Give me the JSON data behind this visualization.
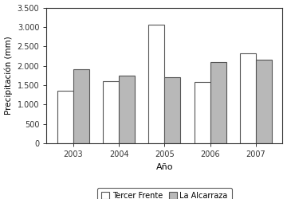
{
  "years": [
    "2003",
    "2004",
    "2005",
    "2006",
    "2007"
  ],
  "tercer_frente": [
    1350,
    1600,
    3050,
    1575,
    2325
  ],
  "la_alcarraza": [
    1900,
    1750,
    1700,
    2100,
    2150
  ],
  "bar_color_tf": "#ffffff",
  "bar_color_la": "#b8b8b8",
  "bar_edge_color": "#555555",
  "xlabel": "Año",
  "ylabel": "Precipitación (mm)",
  "ylim": [
    0,
    3500
  ],
  "yticks": [
    0,
    500,
    1000,
    1500,
    2000,
    2500,
    3000,
    3500
  ],
  "ytick_labels": [
    "0",
    "500",
    "1.000",
    "1.500",
    "2.000",
    "2.500",
    "3.000",
    "3.500"
  ],
  "legend_labels": [
    "Tercer Frente",
    "La Alcarraza"
  ],
  "bar_width": 0.35,
  "background_color": "#ffffff",
  "axis_bg_color": "#ffffff"
}
